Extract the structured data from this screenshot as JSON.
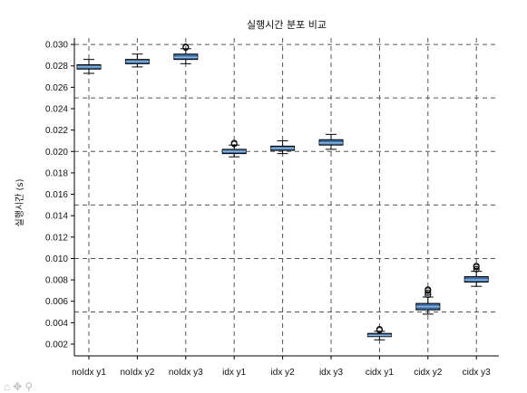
{
  "chart_data": {
    "type": "box",
    "title": "실행시간 분포 비교",
    "ylabel": "실행시간 (s)",
    "xlabel": "",
    "ylim": [
      0.0009,
      0.0306
    ],
    "yticks": [
      0.002,
      0.004,
      0.006,
      0.008,
      0.01,
      0.012,
      0.014,
      0.016,
      0.018,
      0.02,
      0.022,
      0.024,
      0.026,
      0.028,
      0.03
    ],
    "ytick_labels": [
      "0.002",
      "0.004",
      "0.006",
      "0.008",
      "0.010",
      "0.012",
      "0.014",
      "0.016",
      "0.018",
      "0.020",
      "0.022",
      "0.024",
      "0.026",
      "0.028",
      "0.030"
    ],
    "hgrid_values": [
      0.005,
      0.01,
      0.015,
      0.02,
      0.025,
      0.03
    ],
    "grid": true,
    "grid_style": "dashed",
    "box_color": "#3d6fa8",
    "median_color": "#8fb4d6",
    "categories": [
      "noIdx y1",
      "noIdx y2",
      "noIdx y3",
      "idx y1",
      "idx y2",
      "idx y3",
      "cidx y1",
      "cidx y2",
      "cidx y3"
    ],
    "boxes": [
      {
        "whisker_low": 0.0273,
        "q1": 0.0277,
        "median": 0.0279,
        "q3": 0.0281,
        "whisker_high": 0.0286,
        "outliers": []
      },
      {
        "whisker_low": 0.0279,
        "q1": 0.0282,
        "median": 0.0284,
        "q3": 0.0286,
        "whisker_high": 0.0291,
        "outliers": []
      },
      {
        "whisker_low": 0.0282,
        "q1": 0.0286,
        "median": 0.0288,
        "q3": 0.0291,
        "whisker_high": 0.0296,
        "outliers": [
          0.0297,
          0.0298
        ]
      },
      {
        "whisker_low": 0.0195,
        "q1": 0.0198,
        "median": 0.02,
        "q3": 0.0202,
        "whisker_high": 0.0206,
        "outliers": [
          0.0207,
          0.0208
        ]
      },
      {
        "whisker_low": 0.0198,
        "q1": 0.0201,
        "median": 0.0203,
        "q3": 0.0205,
        "whisker_high": 0.021,
        "outliers": []
      },
      {
        "whisker_low": 0.0202,
        "q1": 0.0206,
        "median": 0.0208,
        "q3": 0.0211,
        "whisker_high": 0.0216,
        "outliers": []
      },
      {
        "whisker_low": 0.0024,
        "q1": 0.0027,
        "median": 0.0028,
        "q3": 0.003,
        "whisker_high": 0.0032,
        "outliers": [
          0.0033,
          0.0034
        ]
      },
      {
        "whisker_low": 0.0048,
        "q1": 0.0052,
        "median": 0.0055,
        "q3": 0.0058,
        "whisker_high": 0.0064,
        "outliers": [
          0.0066,
          0.0068,
          0.007,
          0.0071
        ]
      },
      {
        "whisker_low": 0.0074,
        "q1": 0.0078,
        "median": 0.008,
        "q3": 0.0083,
        "whisker_high": 0.0088,
        "outliers": [
          0.009,
          0.0092,
          0.0093
        ]
      }
    ]
  },
  "toolbar": {
    "home_icon": "home-icon",
    "pan_icon": "move-icon",
    "zoom_icon": "zoom-icon"
  }
}
